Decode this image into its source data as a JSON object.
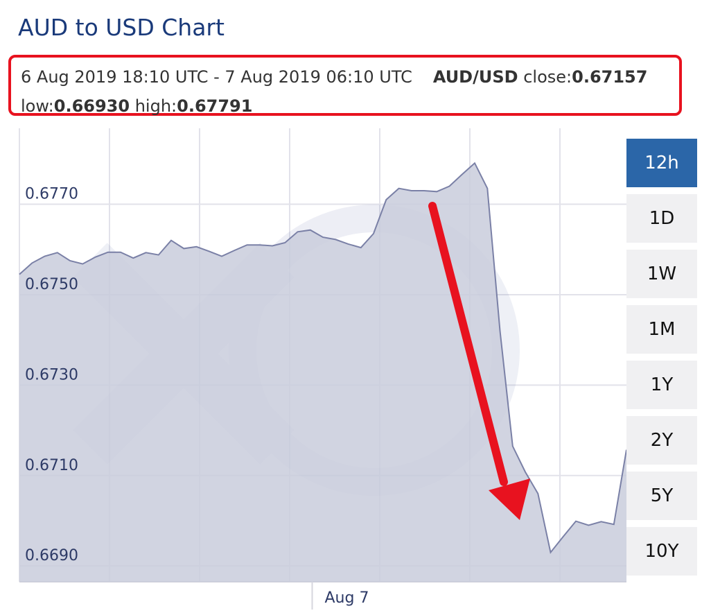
{
  "header": {
    "title": "AUD to USD Chart"
  },
  "info": {
    "period": "6 Aug 2019 18:10 UTC - 7 Aug 2019 06:10 UTC",
    "pair": "AUD/USD",
    "close_label": "close:",
    "close_value": "0.67157",
    "low_label": "low:",
    "low_value": "0.66930",
    "high_label": "high:",
    "high_value": "0.67791"
  },
  "ranges": [
    {
      "label": "12h",
      "active": true
    },
    {
      "label": "1D",
      "active": false
    },
    {
      "label": "1W",
      "active": false
    },
    {
      "label": "1M",
      "active": false
    },
    {
      "label": "1Y",
      "active": false
    },
    {
      "label": "2Y",
      "active": false
    },
    {
      "label": "5Y",
      "active": false
    },
    {
      "label": "10Y",
      "active": false
    }
  ],
  "colors": {
    "title": "#1a3a7a",
    "highlight_box": "#e8121f",
    "area_fill": "#c9ccdc",
    "line": "#7a80a6",
    "active_range": "#2b66a8",
    "arrow": "#e8121f"
  },
  "chart_data": {
    "type": "area",
    "series": [
      {
        "x": [
          0,
          0.25,
          0.5,
          0.75,
          1,
          1.25,
          1.5,
          1.75,
          2,
          2.25,
          2.5,
          2.75,
          3,
          3.25,
          3.5,
          3.75,
          4,
          4.25,
          4.5,
          4.75,
          5,
          5.25,
          5.5,
          5.75,
          6,
          6.25,
          6.5,
          6.75,
          7,
          7.25,
          7.5,
          7.75,
          8,
          8.25,
          8.5,
          8.75,
          9,
          9.25,
          9.5,
          9.75,
          10,
          10.25,
          10.5,
          10.75,
          11,
          11.25,
          11.5,
          11.75,
          12
        ],
        "values": [
          0.67545,
          0.6757,
          0.67585,
          0.67593,
          0.67575,
          0.67568,
          0.67583,
          0.67594,
          0.67594,
          0.67581,
          0.67593,
          0.67588,
          0.6762,
          0.67602,
          0.67606,
          0.67596,
          0.67585,
          0.67598,
          0.6761,
          0.6761,
          0.67608,
          0.67615,
          0.67639,
          0.67643,
          0.67627,
          0.67622,
          0.67612,
          0.67604,
          0.67635,
          0.6771,
          0.67735,
          0.6773,
          0.6773,
          0.67728,
          0.6774,
          0.67766,
          0.67791,
          0.67735,
          0.6742,
          0.67165,
          0.67108,
          0.6706,
          0.6693,
          0.66965,
          0.66999,
          0.6699,
          0.66998,
          0.66992,
          0.67157
        ]
      }
    ],
    "yticks": [
      "0.6770",
      "0.6750",
      "0.6730",
      "0.6710",
      "0.6690"
    ],
    "xticks": [
      "Aug 7"
    ],
    "ylim": [
      0.66865,
      0.67868
    ],
    "grid": true,
    "watermark": "xe"
  }
}
